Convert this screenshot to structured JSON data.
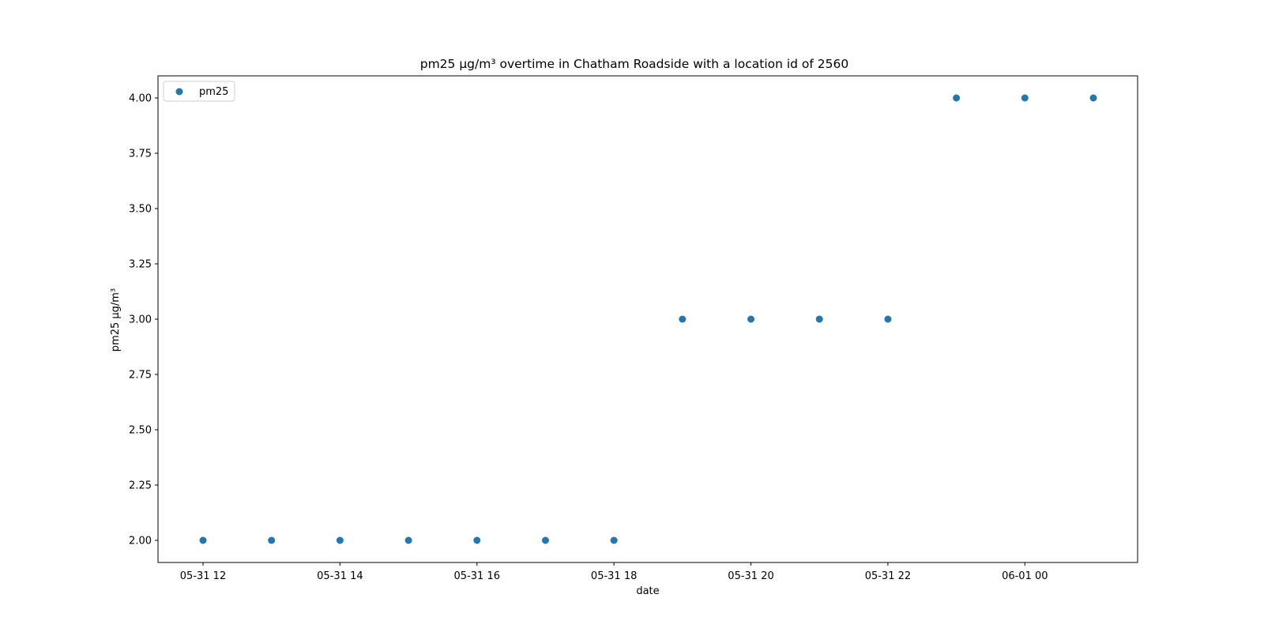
{
  "chart_data": {
    "type": "scatter",
    "title": "pm25 µg/m³ overtime in Chatham Roadside with a location id of 2560",
    "xlabel": "date",
    "ylabel": "pm25 µg/m³",
    "series": [
      {
        "name": "pm25",
        "color": "#1f77b4",
        "x": [
          "05-31 12:00",
          "05-31 13:00",
          "05-31 14:00",
          "05-31 15:00",
          "05-31 16:00",
          "05-31 17:00",
          "05-31 18:00",
          "05-31 19:00",
          "05-31 20:00",
          "05-31 21:00",
          "05-31 22:00",
          "05-31 23:00",
          "06-01 00:00",
          "06-01 01:00"
        ],
        "values": [
          2,
          2,
          2,
          2,
          2,
          2,
          2,
          3,
          3,
          3,
          3,
          4,
          4,
          4
        ]
      }
    ],
    "xticks": [
      "05-31 12",
      "05-31 14",
      "05-31 16",
      "05-31 18",
      "05-31 20",
      "05-31 22",
      "06-01 00"
    ],
    "yticks": [
      "2.00",
      "2.25",
      "2.50",
      "2.75",
      "3.00",
      "3.25",
      "3.50",
      "3.75",
      "4.00"
    ],
    "ylim": [
      1.9,
      4.1
    ],
    "grid": false,
    "legend": "upper left"
  }
}
